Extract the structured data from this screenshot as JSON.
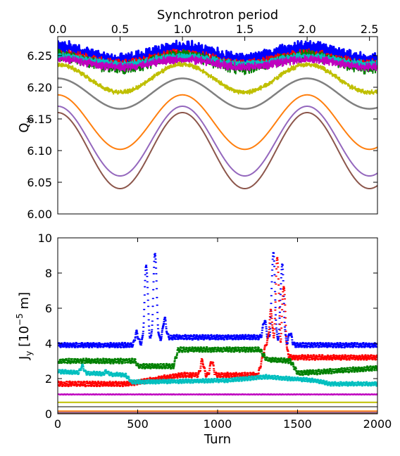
{
  "chart_data": [
    {
      "type": "line",
      "panel": "top",
      "top_axis_label": "Synchrotron period",
      "ylabel_main": "Q",
      "ylabel_sub": "y",
      "xlim": [
        0,
        2000
      ],
      "ylim": [
        6.0,
        6.28
      ],
      "x_top_ticks": [
        "0.0",
        "0.5",
        "1.0",
        "1.5",
        "2.0",
        "2.5"
      ],
      "x_top_tick_values": [
        0,
        0.5,
        1.0,
        1.5,
        2.0,
        2.5
      ],
      "synchrotron_period_turns": 780,
      "y_ticks": [
        "6.00",
        "6.05",
        "6.10",
        "6.15",
        "6.20",
        "6.25"
      ],
      "y_tick_values": [
        6.0,
        6.05,
        6.1,
        6.15,
        6.2,
        6.25
      ],
      "series": [
        {
          "color": "#0000ff",
          "mean": 6.253,
          "amplitude": 0.01,
          "noise": 0.012,
          "width": 3
        },
        {
          "color": "#ff0000",
          "mean": 6.245,
          "amplitude": 0.008,
          "noise": 0.008,
          "width": 2
        },
        {
          "color": "#008000",
          "mean": 6.24,
          "amplitude": 0.01,
          "noise": 0.01,
          "width": 2
        },
        {
          "color": "#00bfbf",
          "mean": 6.243,
          "amplitude": 0.006,
          "noise": 0.006,
          "width": 2
        },
        {
          "color": "#bf00bf",
          "mean": 6.238,
          "amplitude": 0.006,
          "noise": 0.007,
          "width": 2
        },
        {
          "color": "#bfbf00",
          "mean": 6.214,
          "amplitude": 0.022,
          "noise": 0.004,
          "width": 2
        },
        {
          "color": "#808080",
          "mean": 6.19,
          "amplitude": 0.024,
          "noise": 0.0,
          "width": 2.5
        },
        {
          "color": "#ff7f0e",
          "mean": 6.145,
          "amplitude": 0.043,
          "noise": 0.0,
          "width": 2
        },
        {
          "color": "#9467bd",
          "mean": 6.115,
          "amplitude": 0.055,
          "noise": 0.0,
          "width": 2
        },
        {
          "color": "#8c564b",
          "mean": 6.1,
          "amplitude": 0.06,
          "noise": 0.0,
          "width": 2
        }
      ]
    },
    {
      "type": "scatter",
      "panel": "bottom",
      "xlabel": "Turn",
      "ylabel_main": "J",
      "ylabel_sub": "y",
      "ylabel_units_pre": " [10",
      "ylabel_units_exp": "−5",
      "ylabel_units_post": " m]",
      "xlim": [
        0,
        2000
      ],
      "ylim": [
        0,
        10
      ],
      "x_ticks": [
        "0",
        "500",
        "1000",
        "1500",
        "2000"
      ],
      "x_tick_values": [
        0,
        500,
        1000,
        1500,
        2000
      ],
      "y_ticks": [
        "0",
        "2",
        "4",
        "6",
        "8",
        "10"
      ],
      "y_tick_values": [
        0,
        2,
        4,
        6,
        8,
        10
      ],
      "series": [
        {
          "color": "#0000ff",
          "levels": [
            [
              0,
              3.9
            ],
            [
              470,
              3.9
            ],
            [
              700,
              4.35
            ],
            [
              1270,
              4.35
            ],
            [
              1460,
              3.9
            ],
            [
              2000,
              3.9
            ]
          ],
          "spread": 0.12,
          "peaks": [
            [
              490,
              4.6
            ],
            [
              550,
              8.5
            ],
            [
              605,
              9.2
            ],
            [
              665,
              5.4
            ],
            [
              1290,
              5.3
            ],
            [
              1345,
              9.2
            ],
            [
              1400,
              8.5
            ],
            [
              1450,
              4.6
            ]
          ]
        },
        {
          "color": "#ff0000",
          "levels": [
            [
              0,
              1.7
            ],
            [
              440,
              1.7
            ],
            [
              760,
              2.2
            ],
            [
              1250,
              2.2
            ],
            [
              1300,
              4.0
            ],
            [
              1460,
              3.2
            ],
            [
              2000,
              3.2
            ]
          ],
          "spread": 0.12,
          "peaks": [
            [
              900,
              3.0
            ],
            [
              960,
              3.0
            ],
            [
              1330,
              5.8
            ],
            [
              1370,
              8.9
            ],
            [
              1410,
              7.3
            ]
          ]
        },
        {
          "color": "#008000",
          "levels": [
            [
              0,
              3.0
            ],
            [
              480,
              3.0
            ],
            [
              500,
              2.7
            ],
            [
              720,
              2.7
            ],
            [
              750,
              3.65
            ],
            [
              1260,
              3.65
            ],
            [
              1300,
              3.1
            ],
            [
              1450,
              3.0
            ],
            [
              1500,
              2.3
            ],
            [
              2000,
              2.6
            ]
          ],
          "spread": 0.12,
          "peaks": []
        },
        {
          "color": "#00bfbf",
          "levels": [
            [
              0,
              2.4
            ],
            [
              420,
              2.2
            ],
            [
              460,
              1.8
            ],
            [
              1050,
              1.9
            ],
            [
              1300,
              2.1
            ],
            [
              1600,
              1.9
            ],
            [
              1700,
              1.7
            ],
            [
              2000,
              1.7
            ]
          ],
          "spread": 0.1,
          "peaks": [
            [
              150,
              2.7
            ],
            [
              300,
              2.4
            ]
          ]
        },
        {
          "color": "#bf00bf",
          "levels": [
            [
              0,
              1.1
            ],
            [
              2000,
              1.1
            ]
          ],
          "spread": 0.02,
          "peaks": []
        },
        {
          "color": "#bfbf00",
          "levels": [
            [
              0,
              0.65
            ],
            [
              2000,
              0.65
            ]
          ],
          "spread": 0.0,
          "peaks": []
        },
        {
          "color": "#808080",
          "levels": [
            [
              0,
              0.4
            ],
            [
              2000,
              0.4
            ]
          ],
          "spread": 0.0,
          "peaks": []
        },
        {
          "color": "#ff7f0e",
          "levels": [
            [
              0,
              0.15
            ],
            [
              2000,
              0.15
            ]
          ],
          "spread": 0.0,
          "peaks": []
        },
        {
          "color": "#9467bd",
          "levels": [
            [
              0,
              0.07
            ],
            [
              2000,
              0.07
            ]
          ],
          "spread": 0.0,
          "peaks": []
        },
        {
          "color": "#8c564b",
          "levels": [
            [
              0,
              0.03
            ],
            [
              2000,
              0.03
            ]
          ],
          "spread": 0.0,
          "peaks": []
        }
      ]
    }
  ]
}
